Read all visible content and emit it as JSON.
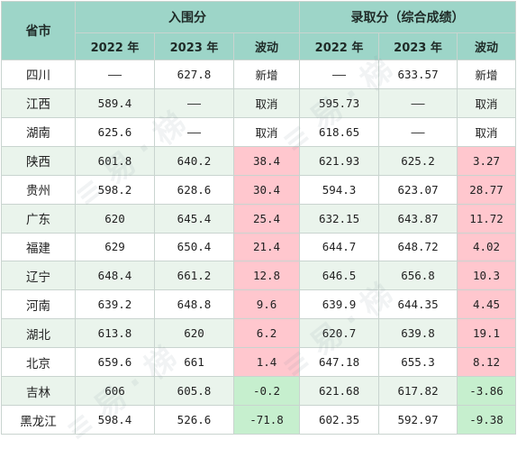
{
  "header": {
    "province": "省市",
    "group_enroll": "入围分",
    "group_admit": "录取分（综合成绩）",
    "col_2022": "2022 年",
    "col_2023": "2023 年",
    "col_change": "波动"
  },
  "rows": [
    {
      "province": "四川",
      "e22": "——",
      "e23": "627.8",
      "ed": "新增",
      "a22": "——",
      "a23": "633.57",
      "ad": "新增"
    },
    {
      "province": "江西",
      "e22": "589.4",
      "e23": "——",
      "ed": "取消",
      "a22": "595.73",
      "a23": "——",
      "ad": "取消"
    },
    {
      "province": "湖南",
      "e22": "625.6",
      "e23": "——",
      "ed": "取消",
      "a22": "618.65",
      "a23": "——",
      "ad": "取消"
    },
    {
      "province": "陕西",
      "e22": "601.8",
      "e23": "640.2",
      "ed": "38.4",
      "a22": "621.93",
      "a23": "625.2",
      "ad": "3.27"
    },
    {
      "province": "贵州",
      "e22": "598.2",
      "e23": "628.6",
      "ed": "30.4",
      "a22": "594.3",
      "a23": "623.07",
      "ad": "28.77"
    },
    {
      "province": "广东",
      "e22": "620",
      "e23": "645.4",
      "ed": "25.4",
      "a22": "632.15",
      "a23": "643.87",
      "ad": "11.72"
    },
    {
      "province": "福建",
      "e22": "629",
      "e23": "650.4",
      "ed": "21.4",
      "a22": "644.7",
      "a23": "648.72",
      "ad": "4.02"
    },
    {
      "province": "辽宁",
      "e22": "648.4",
      "e23": "661.2",
      "ed": "12.8",
      "a22": "646.5",
      "a23": "656.8",
      "ad": "10.3"
    },
    {
      "province": "河南",
      "e22": "639.2",
      "e23": "648.8",
      "ed": "9.6",
      "a22": "639.9",
      "a23": "644.35",
      "ad": "4.45"
    },
    {
      "province": "湖北",
      "e22": "613.8",
      "e23": "620",
      "ed": "6.2",
      "a22": "620.7",
      "a23": "639.8",
      "ad": "19.1"
    },
    {
      "province": "北京",
      "e22": "659.6",
      "e23": "661",
      "ed": "1.4",
      "a22": "647.18",
      "a23": "655.3",
      "ad": "8.12"
    },
    {
      "province": "吉林",
      "e22": "606",
      "e23": "605.8",
      "ed": "-0.2",
      "a22": "621.68",
      "a23": "617.82",
      "ad": "-3.86"
    },
    {
      "province": "黑龙江",
      "e22": "598.4",
      "e23": "526.6",
      "ed": "-71.8",
      "a22": "602.35",
      "a23": "592.97",
      "ad": "-9.38"
    }
  ],
  "colors": {
    "header_bg": "#9dd5c8",
    "stripe_bg": "#eaf4ec",
    "increase_bg": "#ffc7ce",
    "decrease_bg": "#c6efce"
  }
}
